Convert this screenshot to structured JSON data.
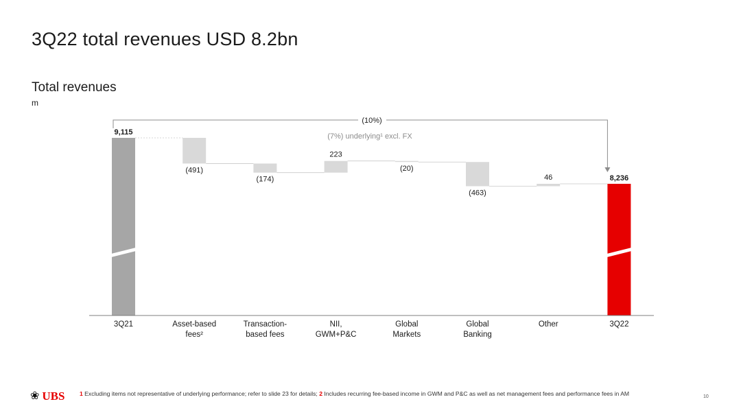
{
  "page": {
    "title": "3Q22 total revenues USD 8.2bn",
    "page_number": "10"
  },
  "chart_data": {
    "type": "waterfall",
    "title": "Total revenues",
    "unit": "m",
    "categories": [
      "3Q21",
      "Asset-based fees²",
      "Transaction-based fees",
      "NII, GWM+P&C",
      "Global Markets",
      "Global Banking",
      "Other",
      "3Q22"
    ],
    "category_lines": [
      [
        "3Q21"
      ],
      [
        "Asset-based",
        "fees²"
      ],
      [
        "Transaction-",
        "based fees"
      ],
      [
        "NII,",
        "GWM+P&C"
      ],
      [
        "Global",
        "Markets"
      ],
      [
        "Global",
        "Banking"
      ],
      [
        "Other"
      ],
      [
        "3Q22"
      ]
    ],
    "kinds": [
      "total",
      "delta",
      "delta",
      "delta",
      "delta",
      "delta",
      "delta",
      "total"
    ],
    "values": [
      9115,
      -491,
      -174,
      223,
      -20,
      -463,
      46,
      8236
    ],
    "value_labels": [
      "9,115",
      "(491)",
      "(174)",
      "223",
      "(20)",
      "(463)",
      "46",
      "8,236"
    ],
    "axis_break": true,
    "change_total": "(10%)",
    "change_underlying": "(7%) underlying¹ excl. FX",
    "colors": {
      "start": "#a6a6a6",
      "delta": "#d9d9d9",
      "end": "#e60000",
      "connector": "#8c8c8c"
    }
  },
  "footer": {
    "logo_text": "UBS",
    "logo_icon": "three-keys-icon",
    "fn1_num": "1",
    "fn1_text": "Excluding items not representative of underlying performance; refer to slide 23 for details;",
    "fn2_num": "2",
    "fn2_text": "Includes recurring fee-based income in GWM and P&C as well as net management fees and performance fees in AM"
  }
}
